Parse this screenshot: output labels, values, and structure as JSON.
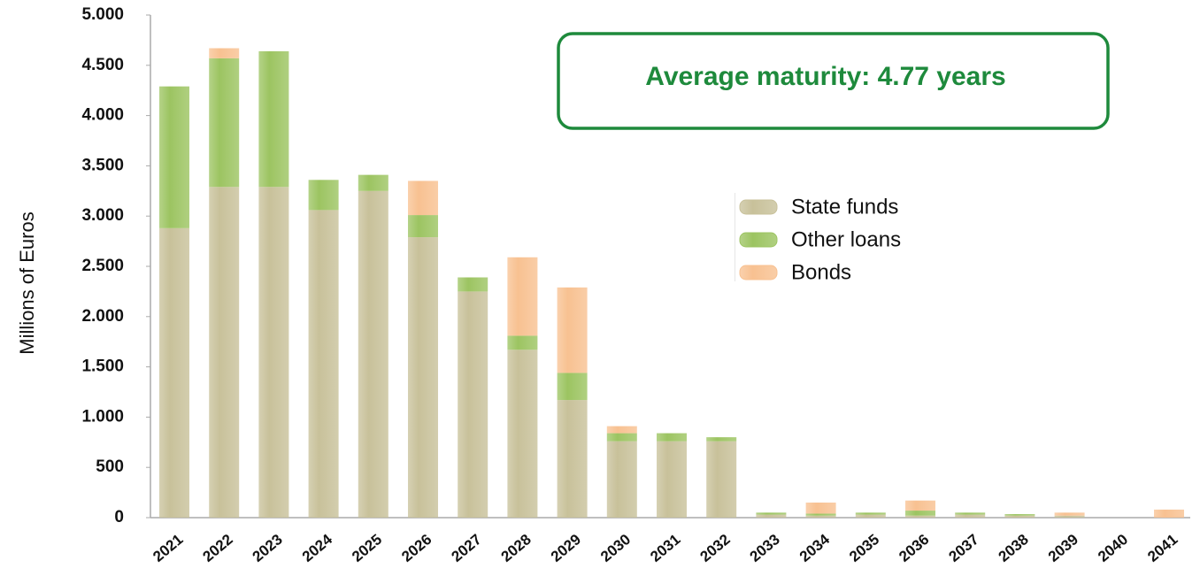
{
  "chart_data": {
    "type": "stacked_bar",
    "y_label": "Millions of Euros",
    "annotation": "Average maturity: 4.77 years",
    "categories": [
      "2021",
      "2022",
      "2023",
      "2024",
      "2025",
      "2026",
      "2027",
      "2028",
      "2029",
      "2030",
      "2031",
      "2032",
      "2033",
      "2034",
      "2035",
      "2036",
      "2037",
      "2038",
      "2039",
      "2040",
      "2041"
    ],
    "series": [
      {
        "name": "State funds",
        "color": "#c8c19a",
        "values": [
          2880,
          3290,
          3290,
          3060,
          3250,
          2790,
          2250,
          1670,
          1170,
          760,
          760,
          760,
          30,
          20,
          30,
          20,
          30,
          20,
          20,
          0,
          0
        ]
      },
      {
        "name": "Other loans",
        "color": "#9cc461",
        "values": [
          1410,
          1280,
          1350,
          300,
          160,
          220,
          140,
          140,
          270,
          80,
          80,
          40,
          20,
          20,
          20,
          50,
          20,
          15,
          0,
          0,
          0
        ]
      },
      {
        "name": "Bonds",
        "color": "#f8c191",
        "values": [
          0,
          100,
          0,
          0,
          0,
          340,
          0,
          780,
          850,
          70,
          0,
          0,
          0,
          110,
          0,
          100,
          0,
          0,
          30,
          0,
          80
        ]
      }
    ],
    "ylim": [
      0,
      5000
    ],
    "yticks": [
      0,
      500,
      {
        "value": 1000,
        "label": "1.000"
      },
      {
        "value": 1500,
        "label": "1.500"
      },
      {
        "value": 2000,
        "label": "2.000"
      },
      {
        "value": 2500,
        "label": "2.500"
      },
      {
        "value": 3000,
        "label": "3.000"
      },
      {
        "value": 3500,
        "label": "3.500"
      },
      {
        "value": 4000,
        "label": "4.000"
      },
      {
        "value": 4500,
        "label": "4.500"
      },
      {
        "value": 5000,
        "label": "5.000"
      }
    ],
    "annotation_color": "#1e8a3c"
  }
}
